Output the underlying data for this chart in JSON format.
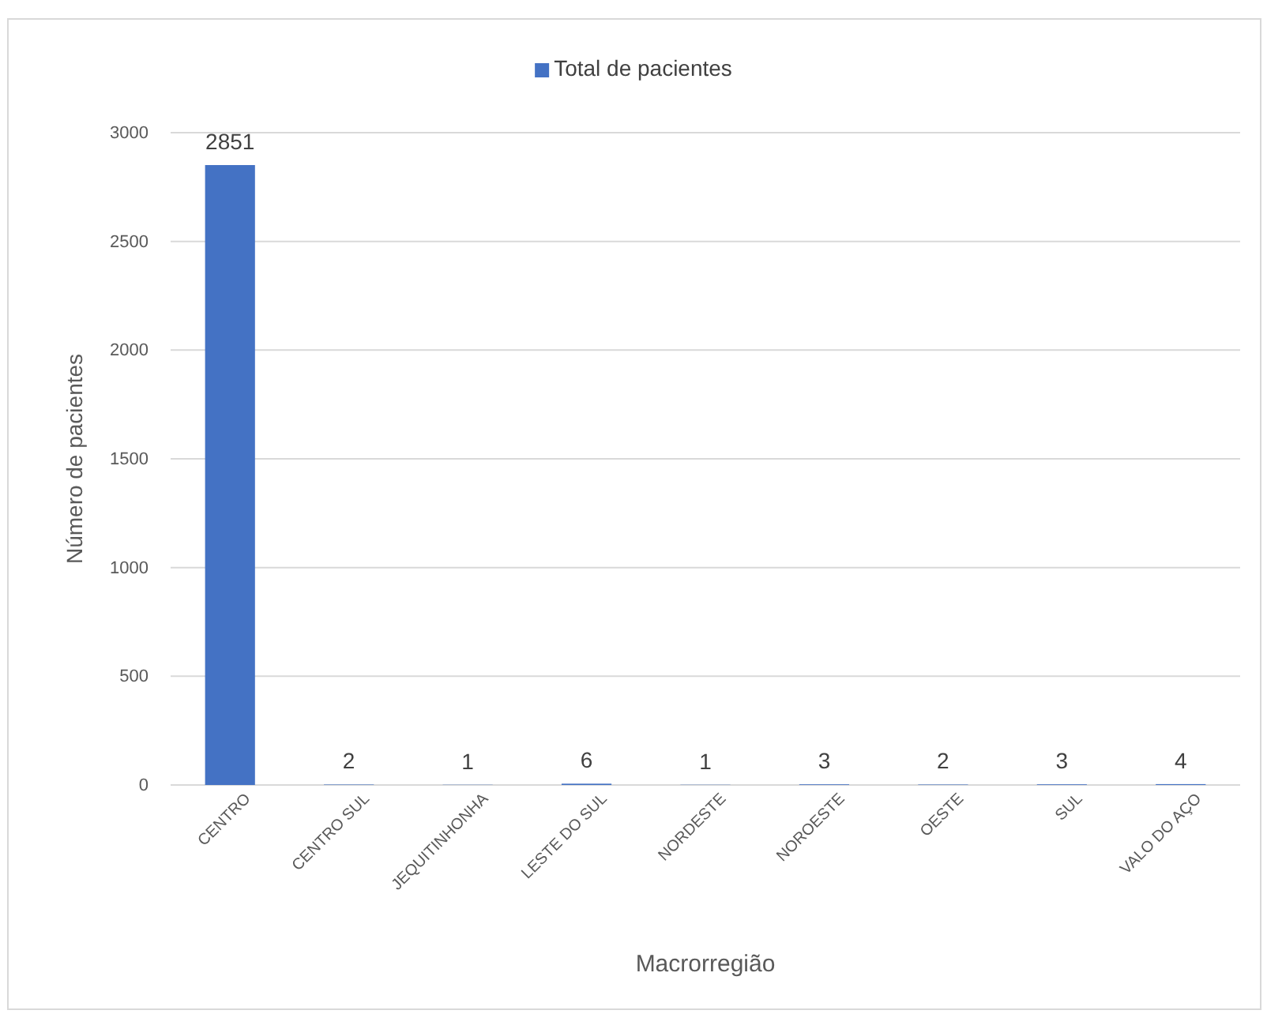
{
  "chart_data": {
    "type": "bar",
    "categories": [
      "CENTRO",
      "CENTRO SUL",
      "JEQUITINHONHA",
      "LESTE DO SUL",
      "NORDESTE",
      "NOROESTE",
      "OESTE",
      "SUL",
      "VALO DO AÇO"
    ],
    "series": [
      {
        "name": "Total de pacientes",
        "color": "#4472c4",
        "values": [
          2851,
          2,
          1,
          6,
          1,
          3,
          2,
          3,
          4
        ]
      }
    ],
    "xlabel": "Macrorregião",
    "ylabel": "Número de pacientes",
    "ylim": [
      0,
      3000
    ],
    "yticks": [
      0,
      500,
      1000,
      1500,
      2000,
      2500,
      3000
    ],
    "grid": "y",
    "legend": "top",
    "data_labels": true
  }
}
